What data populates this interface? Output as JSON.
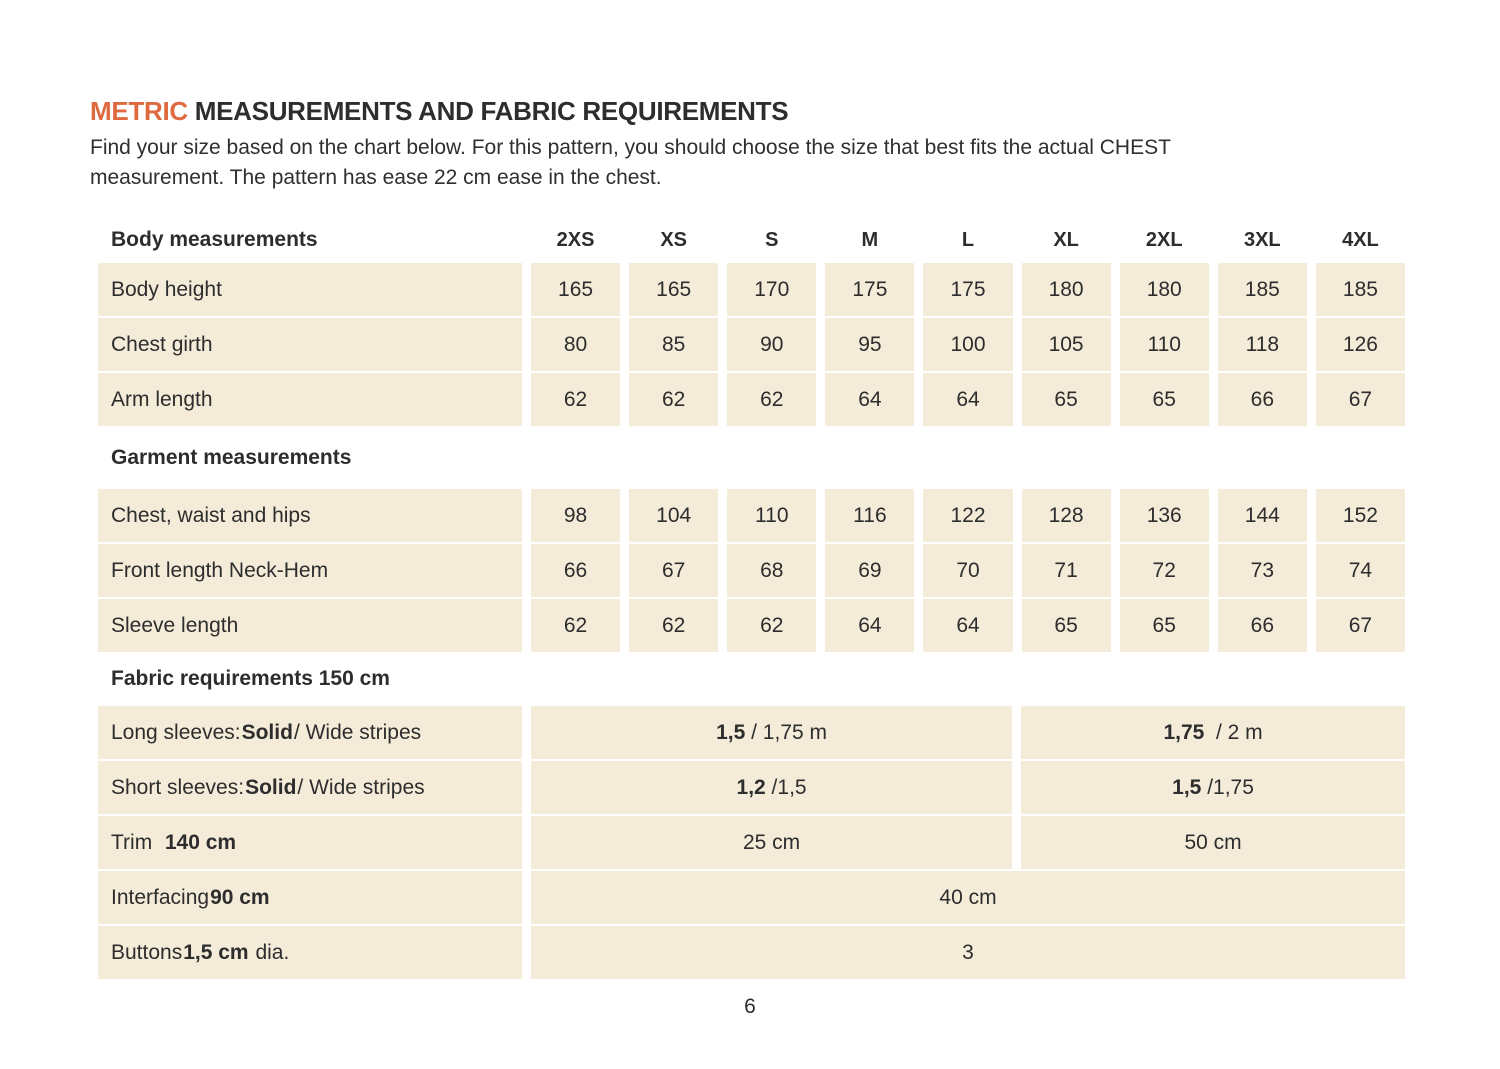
{
  "page": {
    "title_accent": "METRIC",
    "title_rest": " MEASUREMENTS AND FABRIC REQUIREMENTS",
    "intro_line1": "Find your size based on the chart below. For this pattern, you should choose the size that best fits the actual CHEST",
    "intro_line2": "measurement. The pattern has ease 22 cm ease in the chest.",
    "page_number": "6"
  },
  "colors": {
    "accent_orange": "#e06a3f",
    "cell_beige": "#f4ebd9",
    "text_dark": "#2d2d2d"
  },
  "table": {
    "body_section_label": "Body measurements",
    "sizes": [
      "2XS",
      "XS",
      "S",
      "M",
      "L",
      "XL",
      "2XL",
      "3XL",
      "4XL"
    ],
    "body_rows": [
      {
        "label": "Body height",
        "values": [
          "165",
          "165",
          "170",
          "175",
          "175",
          "180",
          "180",
          "185",
          "185"
        ]
      },
      {
        "label": "Chest girth",
        "values": [
          "80",
          "85",
          "90",
          "95",
          "100",
          "105",
          "110",
          "118",
          "126"
        ]
      },
      {
        "label": "Arm length",
        "values": [
          "62",
          "62",
          "62",
          "64",
          "64",
          "65",
          "65",
          "66",
          "67"
        ]
      }
    ],
    "garment_section_label": "Garment measurements",
    "garment_rows": [
      {
        "label": "Chest, waist and hips",
        "values": [
          "98",
          "104",
          "110",
          "116",
          "122",
          "128",
          "136",
          "144",
          "152"
        ]
      },
      {
        "label": "Front length Neck-Hem",
        "values": [
          "66",
          "67",
          "68",
          "69",
          "70",
          "71",
          "72",
          "73",
          "74"
        ]
      },
      {
        "label": "Sleeve length",
        "values": [
          "62",
          "62",
          "62",
          "64",
          "64",
          "65",
          "65",
          "66",
          "67"
        ]
      }
    ],
    "fabric_section_label": "Fabric requirements 150 cm",
    "fabric_rows": [
      {
        "label_prefix": "Long sleeves: ",
        "label_bold": "Solid",
        "label_suffix": " / Wide stripes",
        "left_bold": "1,5",
        "left_rest": " / 1,75 m",
        "right_bold": "1,75",
        "right_rest": "  / 2 m"
      },
      {
        "label_prefix": "Short sleeves: ",
        "label_bold": "Solid",
        "label_suffix": " / Wide stripes",
        "left_bold": "1,2",
        "left_rest": " /1,5",
        "right_bold": "1,5",
        "right_rest": " /1,75"
      },
      {
        "label_prefix": "Trim  ",
        "label_bold": "140 cm",
        "label_suffix": "",
        "left_bold": "",
        "left_rest": "25 cm",
        "right_bold": "",
        "right_rest": "50 cm"
      },
      {
        "label_prefix": "Interfacing ",
        "label_bold": "90 cm",
        "label_suffix": "",
        "full": "40 cm"
      },
      {
        "label_prefix": "Buttons ",
        "label_bold": "1,5 cm",
        "label_suffix": " dia.",
        "full": "3"
      }
    ]
  }
}
